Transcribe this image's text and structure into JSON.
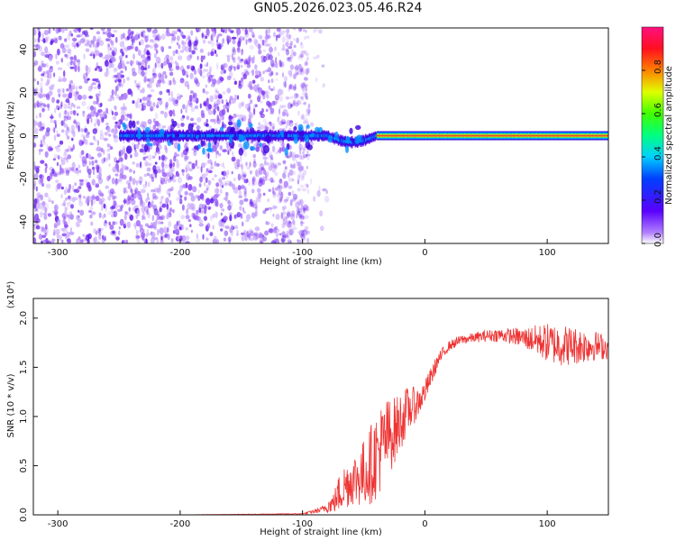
{
  "figure": {
    "title": "GN05.2026.023.05.46.R24"
  },
  "chart_data": [
    {
      "type": "heatmap",
      "xlabel": "Height of straight line (km)",
      "ylabel": "Frequency (Hz)",
      "xlim": [
        -320,
        150
      ],
      "ylim": [
        -50,
        50
      ],
      "x_ticks": [
        "-300",
        "-200",
        "-100",
        "0",
        "100"
      ],
      "y_ticks": [
        "-40",
        "-20",
        "0",
        "20",
        "40"
      ],
      "colorbar": {
        "label": "Normalized spectral amplitude",
        "range": [
          0,
          1
        ],
        "ticks": [
          "0.0",
          "0.2",
          "0.4",
          "0.6",
          "0.8"
        ],
        "colormap": "rainbow (violet → blue → cyan → green → yellow → red → magenta)"
      },
      "description_values": {
        "noise_region_x": [
          -320,
          -95
        ],
        "signal_band_freq_hz": 0,
        "signal_band_x": [
          -250,
          150
        ],
        "strong_signal_x": [
          -40,
          150
        ]
      },
      "grid": false
    },
    {
      "type": "line",
      "xlabel": "Height of straight line (km)",
      "ylabel": "SNR (10 * v/v)",
      "y_multiplier": "(x10⁴)",
      "xlim": [
        -320,
        150
      ],
      "ylim": [
        0,
        2.2
      ],
      "x_ticks": [
        "-300",
        "-200",
        "-100",
        "0",
        "100"
      ],
      "y_ticks": [
        "0.0",
        "0.5",
        "1.0",
        "1.5",
        "2.0"
      ],
      "series_color": "#ee3333",
      "x": [
        -320,
        -200,
        -100,
        -85,
        -75,
        -70,
        -65,
        -60,
        -55,
        -50,
        -45,
        -40,
        -35,
        -30,
        -25,
        -20,
        -15,
        -10,
        -5,
        0,
        5,
        10,
        15,
        20,
        30,
        40,
        50,
        60,
        70,
        80,
        90,
        100,
        110,
        120,
        130,
        140,
        150
      ],
      "y": [
        0.0,
        0.0,
        0.01,
        0.05,
        0.12,
        0.22,
        0.3,
        0.35,
        0.38,
        0.42,
        0.5,
        0.6,
        0.7,
        0.8,
        0.85,
        0.95,
        1.05,
        1.1,
        1.15,
        1.25,
        1.4,
        1.55,
        1.65,
        1.72,
        1.78,
        1.8,
        1.82,
        1.83,
        1.82,
        1.8,
        1.78,
        1.75,
        1.73,
        1.72,
        1.72,
        1.72,
        1.7
      ],
      "noise_amplitude": [
        0,
        0,
        0.005,
        0.03,
        0.1,
        0.2,
        0.25,
        0.25,
        0.3,
        0.35,
        0.4,
        0.45,
        0.45,
        0.4,
        0.35,
        0.3,
        0.25,
        0.2,
        0.15,
        0.12,
        0.1,
        0.08,
        0.06,
        0.05,
        0.05,
        0.05,
        0.06,
        0.07,
        0.08,
        0.1,
        0.15,
        0.2,
        0.22,
        0.2,
        0.18,
        0.15,
        0.12
      ],
      "grid": false
    }
  ],
  "colors": {
    "axis": "#111111",
    "line": "#ee3333",
    "noise": "#8a3cf5"
  }
}
